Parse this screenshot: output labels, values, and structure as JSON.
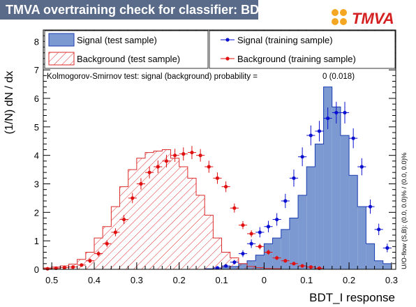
{
  "page": {
    "title": "TMVA overtraining check for classifier: BDT_I",
    "logo_text": "TMVA"
  },
  "colors": {
    "signal_fill": "#7d99d1",
    "signal_line": "#1a3db3",
    "background_hatch": "#dd2a2a",
    "signal_marker": "#0a10d0",
    "background_marker": "#e01010",
    "title_bg": "#5a6b8a"
  },
  "chart_data": {
    "type": "bar",
    "xlabel": "BDT_I response",
    "ylabel": "(1/N) dN / dx",
    "xlim": [
      -0.52,
      0.31
    ],
    "ylim": [
      0,
      8.4
    ],
    "x_ticks": [
      "0.5",
      "0.4",
      "0.3",
      "0.2",
      "0.1",
      "0",
      "0.1",
      "0.2",
      "0.3"
    ],
    "y_ticks": [
      "0",
      "1",
      "2",
      "3",
      "4",
      "5",
      "6",
      "7",
      "8"
    ],
    "ks_text": "Kolmogorov-Smirnov test: signal (background) probability =",
    "ks_value": "0 (0.018)",
    "overflow_text": "U/O-flow (S,B): (0.0, 0.0)% / (0.0, 0.0)%",
    "legend": [
      {
        "label": "Signal (test sample)"
      },
      {
        "label": "Signal (training sample)"
      },
      {
        "label": "Background (test sample)"
      },
      {
        "label": "Background (training sample)"
      }
    ],
    "bin_width": 0.02,
    "bin_edges_start": -0.52,
    "series": [
      {
        "name": "Signal (test sample)",
        "values": [
          0,
          0,
          0,
          0,
          0,
          0,
          0,
          0,
          0,
          0,
          0,
          0,
          0,
          0,
          0,
          0,
          0,
          0,
          0,
          0.02,
          0.05,
          0.08,
          0.1,
          0.2,
          0.3,
          0.5,
          0.9,
          1.1,
          1.4,
          1.8,
          2.6,
          3.6,
          4.4,
          6.4,
          5.7,
          4.7,
          3.3,
          2.2,
          0.9,
          0.3,
          0.2
        ]
      },
      {
        "name": "Background (test sample)",
        "values": [
          0.05,
          0.08,
          0.12,
          0.18,
          0.35,
          0.6,
          1.1,
          1.5,
          2.2,
          2.9,
          3.5,
          3.9,
          4.1,
          4.15,
          4.2,
          3.9,
          3.6,
          3.2,
          2.6,
          1.9,
          1.1,
          0.6,
          0.4,
          0.2,
          0.1,
          0.06,
          0.03,
          0.02,
          0,
          0,
          0,
          0,
          0,
          0,
          0,
          0,
          0,
          0,
          0,
          0,
          0
        ]
      },
      {
        "name": "Signal (training sample)",
        "points": [
          [
            -0.11,
            0.05
          ],
          [
            -0.09,
            0.12
          ],
          [
            -0.07,
            0.25
          ],
          [
            -0.05,
            0.55
          ],
          [
            -0.03,
            0.9
          ],
          [
            -0.01,
            1.3
          ],
          [
            0.01,
            1.5
          ],
          [
            0.03,
            1.75
          ],
          [
            0.05,
            2.4
          ],
          [
            0.07,
            3.2
          ],
          [
            0.09,
            3.95
          ],
          [
            0.11,
            4.7
          ],
          [
            0.13,
            4.85
          ],
          [
            0.15,
            5.3
          ],
          [
            0.17,
            5.5
          ],
          [
            0.19,
            5.5
          ],
          [
            0.21,
            4.6
          ],
          [
            0.23,
            3.6
          ],
          [
            0.25,
            2.2
          ],
          [
            0.27,
            1.4
          ],
          [
            0.29,
            0.75
          ]
        ],
        "errors": [
          0.03,
          0.05,
          0.08,
          0.12,
          0.15,
          0.18,
          0.2,
          0.22,
          0.25,
          0.3,
          0.33,
          0.35,
          0.36,
          0.38,
          0.38,
          0.38,
          0.35,
          0.3,
          0.25,
          0.2,
          0.15
        ]
      },
      {
        "name": "Background (training sample)",
        "points": [
          [
            -0.51,
            0.02
          ],
          [
            -0.49,
            0.04
          ],
          [
            -0.47,
            0.06
          ],
          [
            -0.45,
            0.08
          ],
          [
            -0.43,
            0.15
          ],
          [
            -0.41,
            0.3
          ],
          [
            -0.39,
            0.55
          ],
          [
            -0.37,
            0.9
          ],
          [
            -0.35,
            1.3
          ],
          [
            -0.33,
            1.75
          ],
          [
            -0.31,
            2.5
          ],
          [
            -0.29,
            3.0
          ],
          [
            -0.27,
            3.4
          ],
          [
            -0.25,
            3.6
          ],
          [
            -0.23,
            3.8
          ],
          [
            -0.21,
            4.0
          ],
          [
            -0.19,
            4.05
          ],
          [
            -0.17,
            4.1
          ],
          [
            -0.15,
            4.0
          ],
          [
            -0.13,
            3.6
          ],
          [
            -0.11,
            3.2
          ],
          [
            -0.09,
            2.9
          ],
          [
            -0.07,
            2.15
          ],
          [
            -0.05,
            1.55
          ],
          [
            -0.03,
            1.25
          ],
          [
            -0.01,
            0.8
          ],
          [
            0.01,
            0.6
          ],
          [
            0.03,
            0.4
          ],
          [
            0.05,
            0.3
          ],
          [
            0.07,
            0.2
          ],
          [
            0.09,
            0.12
          ],
          [
            0.11,
            0.08
          ],
          [
            0.13,
            0.04
          ]
        ],
        "errors": [
          0.02,
          0.03,
          0.04,
          0.05,
          0.06,
          0.08,
          0.1,
          0.12,
          0.14,
          0.16,
          0.18,
          0.2,
          0.21,
          0.22,
          0.22,
          0.23,
          0.23,
          0.23,
          0.22,
          0.21,
          0.2,
          0.19,
          0.16,
          0.14,
          0.12,
          0.1,
          0.09,
          0.07,
          0.06,
          0.05,
          0.04,
          0.03,
          0.02
        ]
      }
    ]
  }
}
